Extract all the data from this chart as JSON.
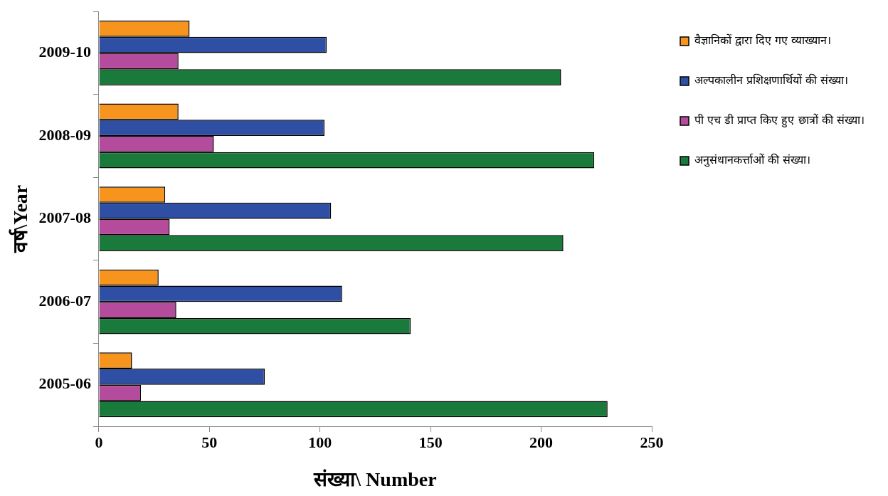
{
  "chart_data": {
    "type": "bar",
    "orientation": "horizontal",
    "xlabel": "संख्या\\ Number",
    "ylabel": "वर्ष\\Year",
    "categories": [
      "2009-10",
      "2008-09",
      "2007-08",
      "2006-07",
      "2005-06"
    ],
    "series": [
      {
        "name": "वैज्ञानिकों द्वारा दिए गए व्याख्यान।",
        "color": "#f7941d",
        "values": [
          41,
          36,
          30,
          27,
          15
        ]
      },
      {
        "name": "अल्पकालीन प्रशिक्षणार्थियों की संख्या।",
        "color": "#2e4fa3",
        "values": [
          103,
          102,
          105,
          110,
          75
        ]
      },
      {
        "name": "पी एच डी प्राप्त किए हुए छात्रों की संख्या।",
        "color": "#b54b9c",
        "values": [
          36,
          52,
          32,
          35,
          19
        ]
      },
      {
        "name": "अनुसंधानकर्त्ताओं की संख्या।",
        "color": "#1a7a3c",
        "values": [
          209,
          224,
          210,
          141,
          230
        ]
      }
    ],
    "xlim": [
      0,
      250
    ],
    "xticks": [
      0,
      50,
      100,
      150,
      200,
      250
    ],
    "grid": false,
    "legend": "right"
  }
}
